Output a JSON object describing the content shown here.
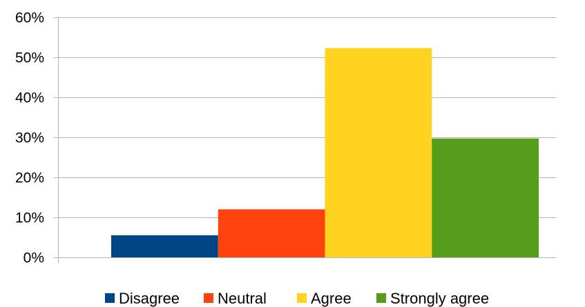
{
  "chart_data": {
    "type": "bar",
    "title": "",
    "xlabel": "",
    "ylabel": "",
    "ylim": [
      0,
      60
    ],
    "y_ticks": [
      0,
      10,
      20,
      30,
      40,
      50,
      60
    ],
    "y_tick_format": "percent",
    "grid": true,
    "legend_position": "bottom",
    "series": [
      {
        "name": "Disagree",
        "value": 5.5,
        "color": "#004586"
      },
      {
        "name": "Neutral",
        "value": 12.0,
        "color": "#ff420e"
      },
      {
        "name": "Agree",
        "value": 52.3,
        "color": "#ffd320"
      },
      {
        "name": "Strongly agree",
        "value": 29.7,
        "color": "#579d1c"
      }
    ]
  }
}
